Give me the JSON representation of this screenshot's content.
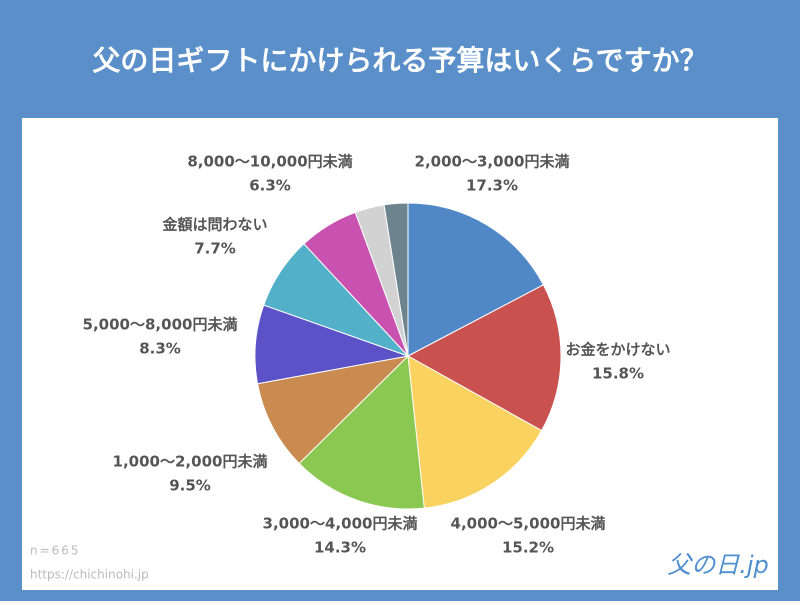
{
  "chart_data": {
    "type": "pie",
    "title": "父の日ギフトにかけられる予算はいくらですか？",
    "categories": [
      "2,000〜3,000円未満",
      "お金をかけない",
      "4,000〜5,000円未満",
      "3,000〜4,000円未満",
      "1,000〜2,000円未満",
      "5,000〜8,000円未満",
      "金額は問わない",
      "8,000〜10,000円未満",
      null,
      null
    ],
    "values": [
      17.3,
      15.8,
      15.2,
      14.3,
      9.5,
      8.3,
      7.7,
      6.3,
      3.1,
      2.5
    ],
    "value_labels": [
      "17.3%",
      "15.8%",
      "15.2%",
      "14.3%",
      "9.5%",
      "8.3%",
      "7.7%",
      "6.3%",
      null,
      null
    ],
    "colors": [
      "#5087c7",
      "#c9514f",
      "#f9d25f",
      "#8bc851",
      "#c98b4f",
      "#5b52c7",
      "#52b0c8",
      "#c952b0",
      "#d2d2d2",
      "#6d848e"
    ]
  },
  "footer": {
    "note": "n=665",
    "source": "https://chichinohi.jp",
    "logo": "父の日.jp"
  }
}
